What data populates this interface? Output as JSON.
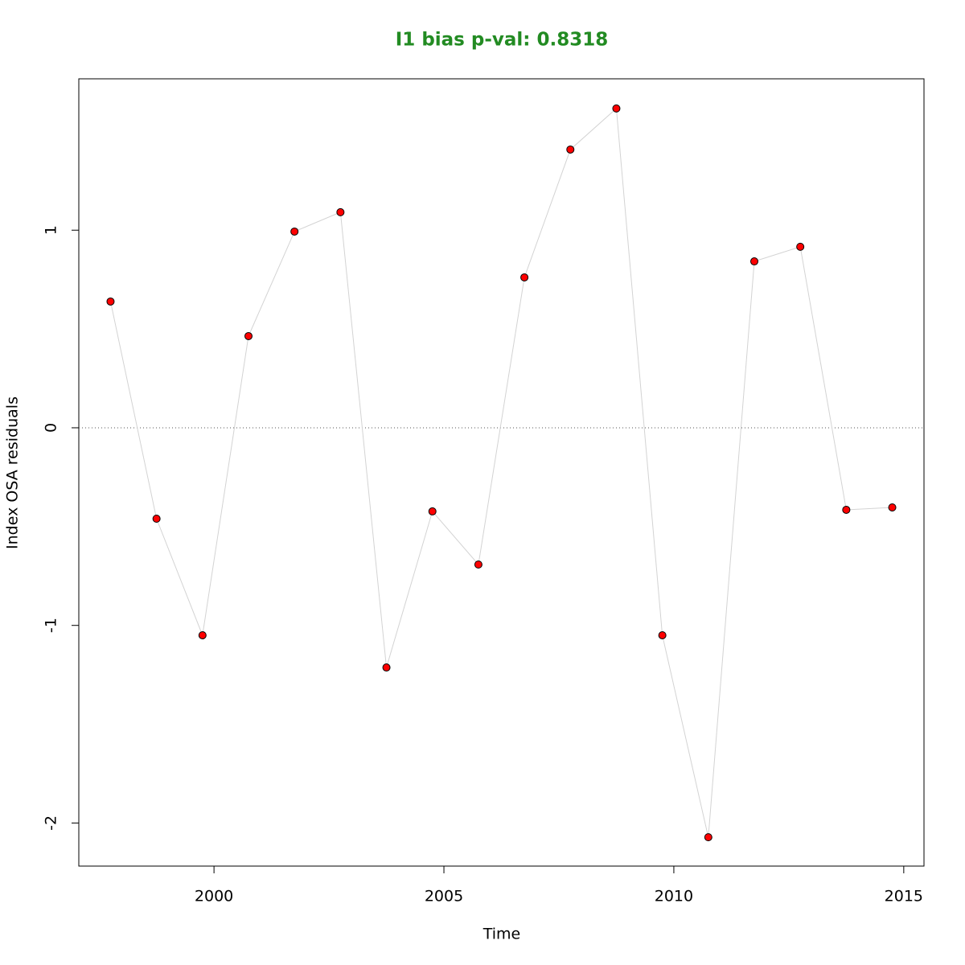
{
  "chart_data": {
    "type": "line",
    "title": "I1 bias p-val: 0.8318",
    "title_color": "#228b22",
    "x_label": "Time",
    "y_label": "Index OSA residuals",
    "x": [
      1997.75,
      1998.75,
      1999.75,
      2000.75,
      2001.75,
      2002.75,
      2003.75,
      2004.75,
      2005.75,
      2006.75,
      2007.75,
      2008.75,
      2009.75,
      2010.75,
      2011.75,
      2012.75,
      2013.75,
      2014.75
    ],
    "series": [
      {
        "color": "#ff0000",
        "line_color": "#d3d3d3",
        "values": [
          0.639,
          -0.46,
          -1.05,
          0.464,
          0.993,
          1.091,
          -1.213,
          -0.423,
          -0.692,
          0.761,
          1.408,
          1.616,
          -1.05,
          -2.072,
          0.842,
          0.916,
          -0.415,
          -0.403
        ]
      }
    ],
    "reference_line": 0,
    "xlim": [
      1997.06,
      2015.44
    ],
    "ylim": [
      -2.218,
      1.766
    ],
    "xticks": [
      2000,
      2005,
      2010,
      2015
    ],
    "yticks": [
      -2,
      -1,
      0,
      1
    ]
  }
}
